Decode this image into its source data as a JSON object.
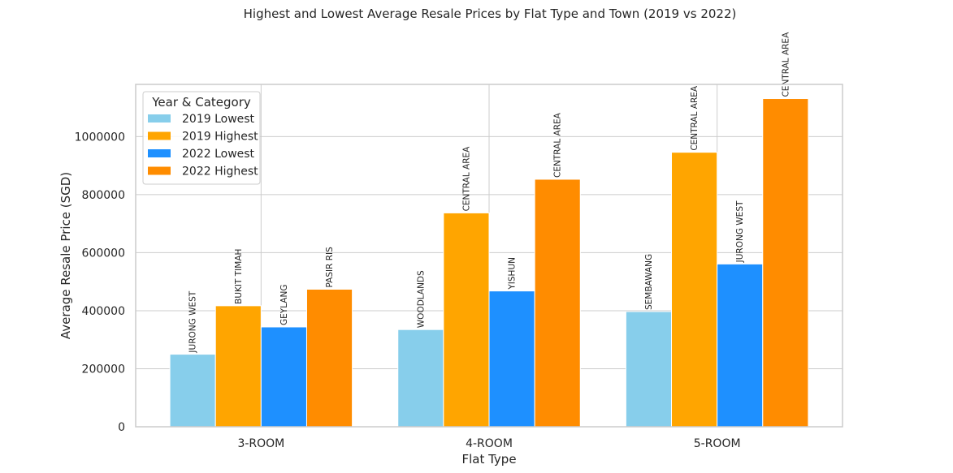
{
  "chart_data": {
    "type": "bar",
    "title": "Highest and Lowest Average Resale Prices by Flat Type and Town (2019 vs 2022)",
    "xlabel": "Flat Type",
    "ylabel": "Average Resale Price (SGD)",
    "categories": [
      "3-ROOM",
      "4-ROOM",
      "5-ROOM"
    ],
    "ylim": [
      0,
      1180000
    ],
    "yticks": [
      0,
      200000,
      400000,
      600000,
      800000,
      1000000
    ],
    "ytick_labels": [
      "0",
      "200000",
      "400000",
      "600000",
      "800000",
      "1000000"
    ],
    "grid": true,
    "legend": {
      "title": "Year & Category",
      "placement": "upper left"
    },
    "series": [
      {
        "name": "2019 Lowest",
        "color": "#87CEEB",
        "values": [
          250000,
          335000,
          397000
        ],
        "labels": [
          "JURONG WEST",
          "WOODLANDS",
          "SEMBAWANG"
        ]
      },
      {
        "name": "2019 Highest",
        "color": "#FFA500",
        "values": [
          417000,
          737000,
          946000
        ],
        "labels": [
          "BUKIT TIMAH",
          "CENTRAL AREA",
          "CENTRAL AREA"
        ]
      },
      {
        "name": "2022 Lowest",
        "color": "#1E90FF",
        "values": [
          344000,
          468000,
          561000
        ],
        "labels": [
          "GEYLANG",
          "YISHUN",
          "JURONG WEST"
        ]
      },
      {
        "name": "2022 Highest",
        "color": "#FF8C00",
        "values": [
          474000,
          853000,
          1131000
        ],
        "labels": [
          "PASIR RIS",
          "CENTRAL AREA",
          "CENTRAL AREA"
        ]
      }
    ]
  }
}
